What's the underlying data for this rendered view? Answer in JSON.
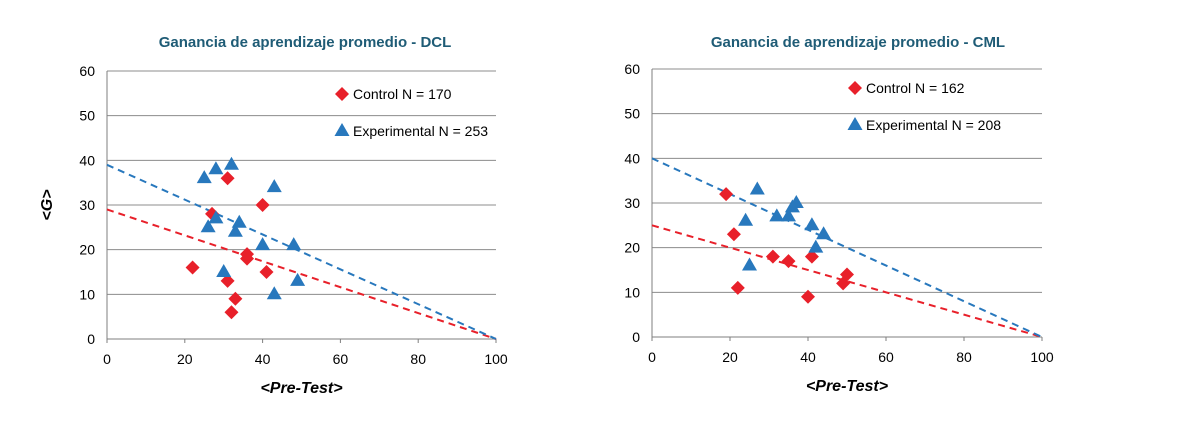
{
  "colors": {
    "title": "#1f5c76",
    "control": "#e8202a",
    "experimental": "#2878bd",
    "gridline": "#8c8c8c",
    "axis": "#7f7f7f"
  },
  "chart_data": [
    {
      "type": "scatter",
      "title": "Ganancia de aprendizaje promedio - DCL",
      "xlabel": "<Pre-Test>",
      "ylabel": "<G>",
      "xlim": [
        0,
        100
      ],
      "ylim": [
        0,
        60
      ],
      "xticks": [
        0,
        20,
        40,
        60,
        80,
        100
      ],
      "yticks": [
        0,
        10,
        20,
        30,
        40,
        50,
        60
      ],
      "grid": "horizontal",
      "legend_position": "top-right",
      "series": [
        {
          "name": "Control",
          "label": "Control  N = 170",
          "marker": "diamond",
          "color": "#e8202a",
          "points": [
            [
              22,
              16
            ],
            [
              27,
              28
            ],
            [
              31,
              36
            ],
            [
              31,
              13
            ],
            [
              32,
              6
            ],
            [
              33,
              9
            ],
            [
              36,
              18
            ],
            [
              36,
              19
            ],
            [
              40,
              30
            ],
            [
              41,
              15
            ]
          ],
          "trendline": [
            [
              0,
              29
            ],
            [
              100,
              0
            ]
          ]
        },
        {
          "name": "Experimental",
          "label": "Experimental  N = 253",
          "marker": "triangle",
          "color": "#2878bd",
          "points": [
            [
              25,
              36
            ],
            [
              26,
              25
            ],
            [
              28,
              27
            ],
            [
              28,
              38
            ],
            [
              30,
              15
            ],
            [
              32,
              39
            ],
            [
              33,
              24
            ],
            [
              34,
              26
            ],
            [
              40,
              21
            ],
            [
              43,
              34
            ],
            [
              43,
              10
            ],
            [
              48,
              21
            ],
            [
              49,
              13
            ]
          ],
          "trendline": [
            [
              0,
              39
            ],
            [
              100,
              0
            ]
          ]
        }
      ]
    },
    {
      "type": "scatter",
      "title": "Ganancia de aprendizaje promedio - CML",
      "xlabel": "<Pre-Test>",
      "ylabel": "<G>",
      "xlim": [
        0,
        100
      ],
      "ylim": [
        0,
        60
      ],
      "xticks": [
        0,
        20,
        40,
        60,
        80,
        100
      ],
      "yticks": [
        0,
        10,
        20,
        30,
        40,
        50,
        60
      ],
      "grid": "horizontal",
      "legend_position": "top-right",
      "series": [
        {
          "name": "Control",
          "label": "Control  N = 162",
          "marker": "diamond",
          "color": "#e8202a",
          "points": [
            [
              19,
              32
            ],
            [
              21,
              23
            ],
            [
              22,
              11
            ],
            [
              31,
              18
            ],
            [
              35,
              17
            ],
            [
              40,
              9
            ],
            [
              41,
              18
            ],
            [
              49,
              12
            ],
            [
              50,
              14
            ]
          ],
          "trendline": [
            [
              0,
              25
            ],
            [
              100,
              0
            ]
          ]
        },
        {
          "name": "Experimental",
          "label": "Experimental  N = 208",
          "marker": "triangle",
          "color": "#2878bd",
          "points": [
            [
              24,
              26
            ],
            [
              25,
              16
            ],
            [
              27,
              33
            ],
            [
              32,
              27
            ],
            [
              35,
              27
            ],
            [
              36,
              29
            ],
            [
              37,
              30
            ],
            [
              41,
              25
            ],
            [
              42,
              20
            ],
            [
              44,
              23
            ]
          ],
          "trendline": [
            [
              0,
              40
            ],
            [
              100,
              0
            ]
          ]
        }
      ]
    }
  ]
}
